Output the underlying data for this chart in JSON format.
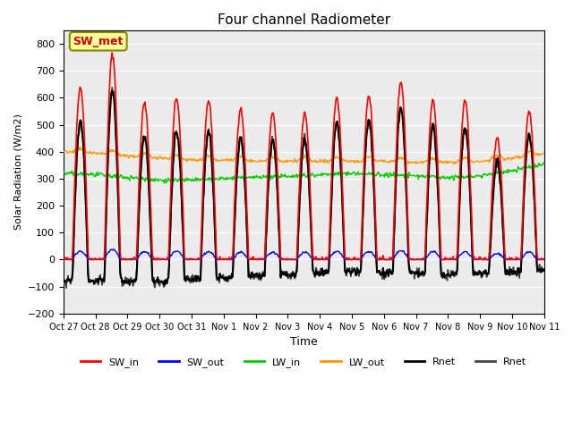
{
  "title": "Four channel Radiometer",
  "xlabel": "Time",
  "ylabel": "Solar Radiation (W/m2)",
  "ylim": [
    -200,
    850
  ],
  "yticks": [
    -200,
    -100,
    0,
    100,
    200,
    300,
    400,
    500,
    600,
    700,
    800
  ],
  "x_labels": [
    "Oct 27",
    "Oct 28",
    "Oct 29",
    "Oct 30",
    "Oct 31",
    "Nov 1",
    "Nov 2",
    "Nov 3",
    "Nov 4",
    "Nov 5",
    "Nov 6",
    "Nov 7",
    "Nov 8",
    "Nov 9",
    "Nov 10",
    "Nov 11"
  ],
  "annotation_text": "SW_met",
  "annotation_box_color": "#FFFF99",
  "annotation_text_color": "#CC0000",
  "colors": {
    "SW_in": "#FF0000",
    "SW_out": "#0000FF",
    "LW_in": "#00CC00",
    "LW_out": "#FF9900",
    "Rnet_black": "#000000",
    "Rnet_dark": "#444444"
  },
  "legend_labels": [
    "SW_in",
    "SW_out",
    "LW_in",
    "LW_out",
    "Rnet",
    "Rnet"
  ],
  "n_days": 15,
  "sw_in_peaks": [
    640,
    760,
    580,
    600,
    590,
    560,
    540,
    540,
    600,
    610,
    660,
    590,
    590,
    450,
    550
  ],
  "background_color": "#ebebeb"
}
